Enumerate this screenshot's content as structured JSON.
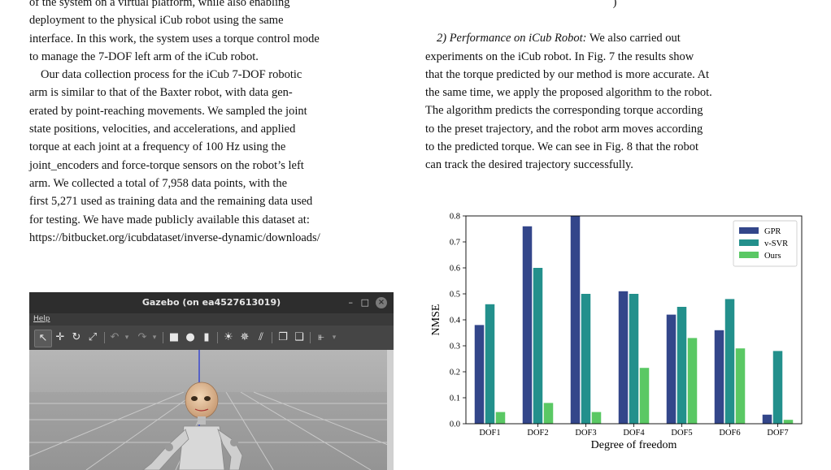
{
  "left_column": {
    "para1_lines": [
      "of the system on a virtual platform, while also enabling",
      "deployment to the physical iCub robot using the same",
      "interface. In this work, the system uses a torque control mode",
      "to manage the 7-DOF left arm of the iCub robot."
    ],
    "para2_lines": [
      "Our data collection process for the iCub 7-DOF robotic",
      "arm is similar to that of the Baxter robot, with data gen-",
      "erated by point-reaching movements. We sampled the joint",
      "state positions, velocities, and accelerations, and applied",
      "torque at each joint at a frequency of 100 Hz using the",
      "joint_encoders and force-torque sensors on the robot’s left",
      "arm. We collected a total of 7,958 data points, with the",
      "first 5,271 used as training data and the remaining data used",
      "for testing. We have made publicly available this dataset at:",
      "https://bitbucket.org/icubdataset/inverse-dynamic/downloads/"
    ]
  },
  "right_column": {
    "top_fragment": ")",
    "heading": "2) Performance on iCub Robot:",
    "para_first": " We also carried out",
    "para_lines": [
      "experiments on the iCub robot. In Fig. 7 the results show",
      "that the torque predicted by our method is more accurate. At",
      "the same time, we apply the proposed algorithm to the robot.",
      "The algorithm predicts the corresponding torque according",
      "to the preset trajectory, and the robot arm moves according",
      "to the predicted torque. We can see in Fig. 8 that the robot",
      "can track the desired trajectory successfully."
    ]
  },
  "gazebo": {
    "title": "Gazebo (on ea4527613019)",
    "menu_help": "Help",
    "minimize_glyph": "–",
    "maximize_glyph": "□",
    "close_glyph": "×",
    "colors": {
      "titlebar": "#2d2d2d",
      "toolbar": "#454545",
      "viewport": "#a9a9a9",
      "grid": "#c9c9c9"
    }
  },
  "chart_data": {
    "type": "bar",
    "categories": [
      "DOF1",
      "DOF2",
      "DOF3",
      "DOF4",
      "DOF5",
      "DOF6",
      "DOF7"
    ],
    "series": [
      {
        "name": "GPR",
        "color": "#33468a",
        "values": [
          0.38,
          0.76,
          0.8,
          0.51,
          0.42,
          0.36,
          0.035
        ]
      },
      {
        "name": "v-SVR",
        "color": "#23908c",
        "values": [
          0.46,
          0.6,
          0.5,
          0.5,
          0.45,
          0.48,
          0.28
        ]
      },
      {
        "name": "Ours",
        "color": "#5ac864",
        "values": [
          0.045,
          0.08,
          0.045,
          0.215,
          0.33,
          0.29,
          0.015
        ]
      }
    ],
    "xlabel": "Degree of freedom",
    "ylabel": "NMSE",
    "ylim": [
      0.0,
      0.8
    ],
    "yticks": [
      "0.0",
      "0.1",
      "0.2",
      "0.3",
      "0.4",
      "0.5",
      "0.6",
      "0.7",
      "0.8"
    ],
    "legend": "top-right",
    "grid": false
  }
}
